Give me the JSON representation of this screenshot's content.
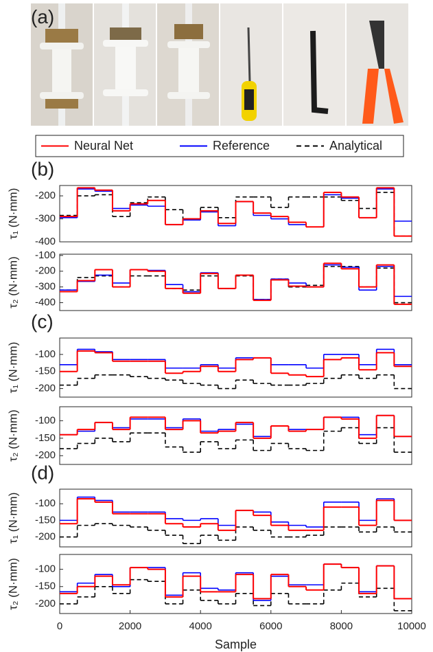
{
  "photo_panel": "(a)",
  "chart_data": [
    {
      "type": "line",
      "panel": "(b)",
      "ylabel": "τ₁ (N·mm)",
      "xlim": [
        0,
        10000
      ],
      "ylim": [
        -400,
        -155
      ],
      "yticks": [
        -200,
        -300,
        -400
      ],
      "x": [
        0,
        500,
        1000,
        1500,
        2000,
        2500,
        3000,
        3500,
        4000,
        4500,
        5000,
        5500,
        6000,
        6500,
        7000,
        7500,
        8000,
        8500,
        9000,
        9500
      ],
      "series": [
        {
          "name": "Neural Net",
          "color": "#ff0000",
          "values": [
            -290,
            -165,
            -175,
            -265,
            -235,
            -220,
            -325,
            -300,
            -265,
            -320,
            -225,
            -275,
            -290,
            -315,
            -335,
            -185,
            -205,
            -295,
            -165,
            -375
          ]
        },
        {
          "name": "Reference",
          "color": "#0000ff",
          "values": [
            -295,
            -170,
            -180,
            -255,
            -240,
            -245,
            -325,
            -305,
            -270,
            -330,
            -225,
            -285,
            -300,
            -325,
            -335,
            -195,
            -210,
            -295,
            -170,
            -310
          ]
        },
        {
          "name": "Analytical",
          "color": "#000000",
          "dashed": true,
          "values": [
            -285,
            -200,
            -195,
            -290,
            -230,
            -205,
            -260,
            -300,
            -250,
            -295,
            -205,
            -205,
            -250,
            -205,
            -205,
            -205,
            -220,
            -255,
            -185,
            -375
          ]
        }
      ]
    },
    {
      "type": "line",
      "ylabel": "τ₂ (N·mm)",
      "xlim": [
        0,
        10000
      ],
      "ylim": [
        -450,
        -92
      ],
      "yticks": [
        -100,
        -200,
        -300,
        -400
      ],
      "x": [
        0,
        500,
        1000,
        1500,
        2000,
        2500,
        3000,
        3500,
        4000,
        4500,
        5000,
        5500,
        6000,
        6500,
        7000,
        7500,
        8000,
        8500,
        9000,
        9500
      ],
      "series": [
        {
          "name": "Neural Net",
          "color": "#ff0000",
          "values": [
            -330,
            -260,
            -190,
            -300,
            -190,
            -200,
            -310,
            -340,
            -215,
            -310,
            -225,
            -385,
            -255,
            -295,
            -300,
            -150,
            -185,
            -300,
            -160,
            -410
          ]
        },
        {
          "name": "Reference",
          "color": "#0000ff",
          "values": [
            -320,
            -265,
            -225,
            -275,
            -190,
            -195,
            -285,
            -330,
            -210,
            -310,
            -225,
            -380,
            -250,
            -275,
            -300,
            -160,
            -175,
            -320,
            -170,
            -360
          ]
        },
        {
          "name": "Analytical",
          "color": "#000000",
          "dashed": true,
          "values": [
            -320,
            -240,
            -230,
            -300,
            -230,
            -230,
            -310,
            -320,
            -230,
            -310,
            -230,
            -380,
            -250,
            -300,
            -290,
            -170,
            -170,
            -300,
            -180,
            -400
          ]
        }
      ]
    },
    {
      "type": "line",
      "panel": "(c)",
      "ylabel": "τ₁ (N·mm)",
      "xlim": [
        0,
        10000
      ],
      "ylim": [
        -225,
        -52
      ],
      "yticks": [
        -100,
        -150,
        -200
      ],
      "x": [
        0,
        500,
        1000,
        1500,
        2000,
        2500,
        3000,
        3500,
        4000,
        4500,
        5000,
        5500,
        6000,
        6500,
        7000,
        7500,
        8000,
        8500,
        9000,
        9500
      ],
      "series": [
        {
          "name": "Neural Net",
          "color": "#ff0000",
          "values": [
            -150,
            -90,
            -95,
            -120,
            -120,
            -120,
            -155,
            -150,
            -135,
            -150,
            -115,
            -110,
            -155,
            -160,
            -165,
            -115,
            -110,
            -145,
            -95,
            -135
          ]
        },
        {
          "name": "Reference",
          "color": "#0000ff",
          "values": [
            -130,
            -85,
            -92,
            -115,
            -115,
            -115,
            -140,
            -140,
            -130,
            -140,
            -110,
            -110,
            -130,
            -130,
            -140,
            -100,
            -100,
            -130,
            -85,
            -130
          ]
        },
        {
          "name": "Analytical",
          "color": "#000000",
          "dashed": true,
          "values": [
            -190,
            -170,
            -160,
            -160,
            -165,
            -170,
            -175,
            -185,
            -190,
            -200,
            -175,
            -185,
            -190,
            -190,
            -185,
            -170,
            -160,
            -170,
            -160,
            -200
          ]
        }
      ]
    },
    {
      "type": "line",
      "ylabel": "τ₂ (N·mm)",
      "xlim": [
        0,
        10000
      ],
      "ylim": [
        -225,
        -60
      ],
      "yticks": [
        -100,
        -150,
        -200
      ],
      "x": [
        0,
        500,
        1000,
        1500,
        2000,
        2500,
        3000,
        3500,
        4000,
        4500,
        5000,
        5500,
        6000,
        6500,
        7000,
        7500,
        8000,
        8500,
        9000,
        9500
      ],
      "series": [
        {
          "name": "Neural Net",
          "color": "#ff0000",
          "values": [
            -140,
            -125,
            -105,
            -125,
            -90,
            -90,
            -125,
            -100,
            -135,
            -130,
            -105,
            -150,
            -115,
            -130,
            -125,
            -90,
            -95,
            -150,
            -85,
            -145
          ]
        },
        {
          "name": "Reference",
          "color": "#0000ff",
          "values": [
            -140,
            -130,
            -105,
            -120,
            -95,
            -95,
            -120,
            -95,
            -130,
            -125,
            -110,
            -145,
            -115,
            -125,
            -125,
            -90,
            -90,
            -140,
            -85,
            -145
          ]
        },
        {
          "name": "Analytical",
          "color": "#000000",
          "dashed": true,
          "values": [
            -180,
            -165,
            -150,
            -160,
            -135,
            -135,
            -175,
            -190,
            -160,
            -180,
            -155,
            -185,
            -165,
            -180,
            -185,
            -130,
            -120,
            -165,
            -120,
            -190
          ]
        }
      ]
    },
    {
      "type": "line",
      "panel": "(d)",
      "ylabel": "τ₁ (N·mm)",
      "xlim": [
        0,
        10000
      ],
      "ylim": [
        -230,
        -56
      ],
      "yticks": [
        -100,
        -150,
        -200
      ],
      "x": [
        0,
        500,
        1000,
        1500,
        2000,
        2500,
        3000,
        3500,
        4000,
        4500,
        5000,
        5500,
        6000,
        6500,
        7000,
        7500,
        8000,
        8500,
        9000,
        9500
      ],
      "series": [
        {
          "name": "Neural Net",
          "color": "#ff0000",
          "values": [
            -160,
            -85,
            -95,
            -130,
            -130,
            -130,
            -160,
            -170,
            -160,
            -180,
            -120,
            -135,
            -165,
            -180,
            -180,
            -110,
            -110,
            -165,
            -90,
            -150
          ]
        },
        {
          "name": "Reference",
          "color": "#0000ff",
          "values": [
            -150,
            -80,
            -90,
            -125,
            -125,
            -125,
            -145,
            -150,
            -145,
            -165,
            -120,
            -125,
            -155,
            -165,
            -170,
            -95,
            -95,
            -150,
            -85,
            -150
          ]
        },
        {
          "name": "Analytical",
          "color": "#000000",
          "dashed": true,
          "values": [
            -200,
            -165,
            -160,
            -165,
            -170,
            -180,
            -195,
            -220,
            -195,
            -210,
            -170,
            -180,
            -200,
            -200,
            -195,
            -170,
            -170,
            -185,
            -170,
            -185
          ]
        }
      ]
    },
    {
      "type": "line",
      "ylabel": "τ₂ (N·mm)",
      "xlabel": "Sample",
      "xlim": [
        0,
        10000
      ],
      "xticks": [
        0,
        2000,
        4000,
        6000,
        8000,
        10000
      ],
      "ylim": [
        -228,
        -57
      ],
      "yticks": [
        -100,
        -150,
        -200
      ],
      "x": [
        0,
        500,
        1000,
        1500,
        2000,
        2500,
        3000,
        3500,
        4000,
        4500,
        5000,
        5500,
        6000,
        6500,
        7000,
        7500,
        8000,
        8500,
        9000,
        9500
      ],
      "series": [
        {
          "name": "Neural Net",
          "color": "#ff0000",
          "values": [
            -170,
            -150,
            -120,
            -145,
            -95,
            -100,
            -180,
            -120,
            -165,
            -165,
            -115,
            -185,
            -115,
            -150,
            -160,
            -85,
            -95,
            -170,
            -90,
            -185
          ]
        },
        {
          "name": "Reference",
          "color": "#0000ff",
          "values": [
            -165,
            -140,
            -115,
            -150,
            -95,
            -95,
            -175,
            -110,
            -155,
            -160,
            -110,
            -190,
            -120,
            -145,
            -145,
            -85,
            -95,
            -165,
            -90,
            -185
          ]
        },
        {
          "name": "Analytical",
          "color": "#000000",
          "dashed": true,
          "values": [
            -200,
            -180,
            -150,
            -170,
            -130,
            -135,
            -200,
            -160,
            -190,
            -200,
            -170,
            -205,
            -170,
            -200,
            -200,
            -160,
            -140,
            -180,
            -155,
            -220
          ]
        }
      ]
    }
  ]
}
